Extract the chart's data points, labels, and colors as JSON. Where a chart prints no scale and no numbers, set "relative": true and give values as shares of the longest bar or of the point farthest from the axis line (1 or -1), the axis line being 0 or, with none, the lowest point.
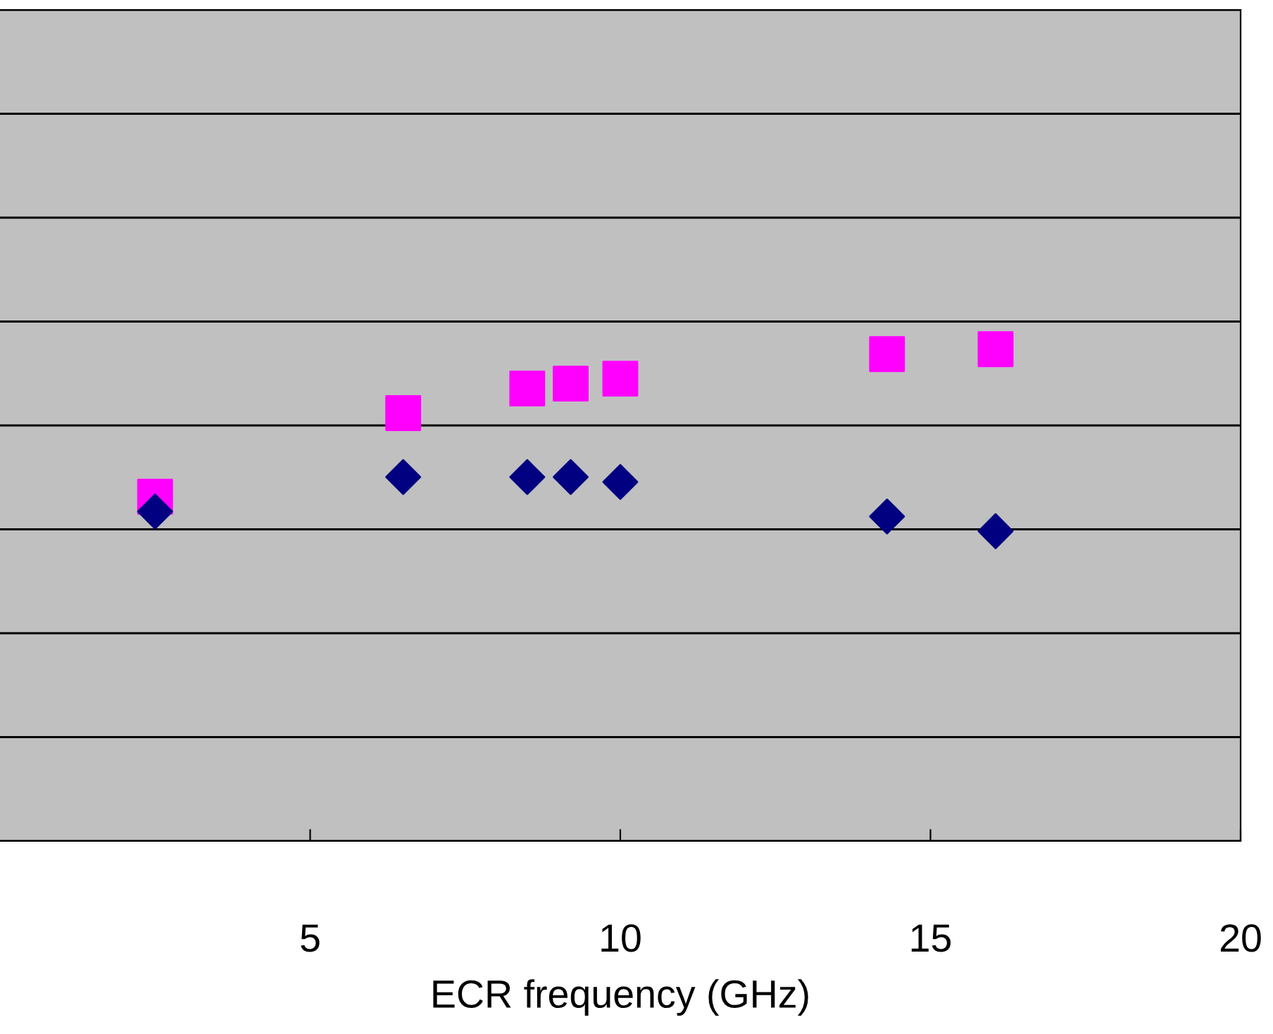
{
  "chart_data": {
    "type": "scatter",
    "xlabel": "ECR frequency (GHz)",
    "relative": true,
    "xlim": [
      0,
      20
    ],
    "xticks": [
      5,
      10,
      15,
      20
    ],
    "grid": "y",
    "legend": false,
    "tick_labels": "x",
    "series": [
      {
        "color": "#000080",
        "marker": "diamond",
        "x": [
          2.5,
          6.5,
          8.5,
          9.2,
          10,
          14.3,
          16.05
        ],
        "values": [
          0.67,
          0.74,
          0.74,
          0.74,
          0.73,
          0.66,
          0.63
        ]
      },
      {
        "color": "#ff00ff",
        "marker": "square",
        "x": [
          2.5,
          6.5,
          8.5,
          9.2,
          10,
          14.3,
          16.05
        ],
        "values": [
          0.7,
          0.87,
          0.92,
          0.93,
          0.94,
          0.99,
          1.0
        ]
      }
    ]
  }
}
